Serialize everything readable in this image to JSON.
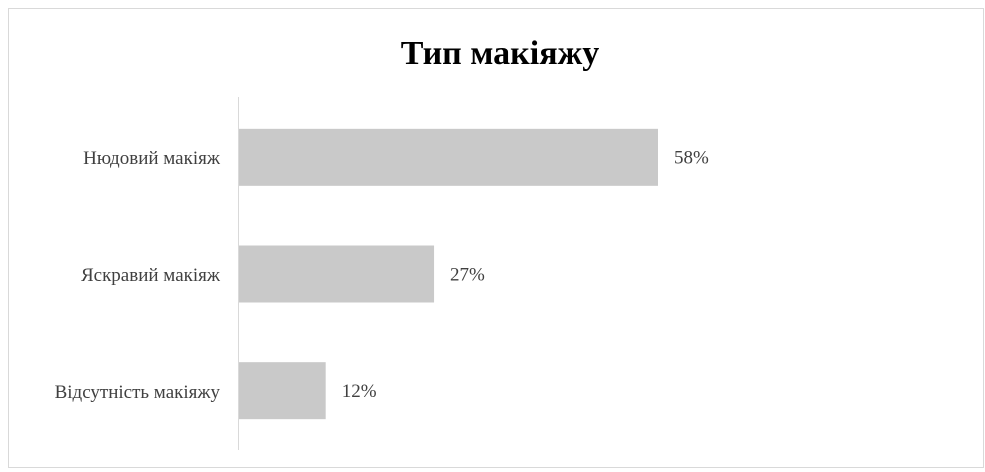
{
  "chart_data": {
    "type": "bar",
    "orientation": "horizontal",
    "title": "Тип макіяжу",
    "categories": [
      "Нюдовий макіяж",
      "Яскравий макіяж",
      "Відсутність макіяжу"
    ],
    "values": [
      58,
      27,
      12
    ],
    "value_labels": [
      "58%",
      "27%",
      "12%"
    ],
    "color": "#c9c9c9"
  }
}
